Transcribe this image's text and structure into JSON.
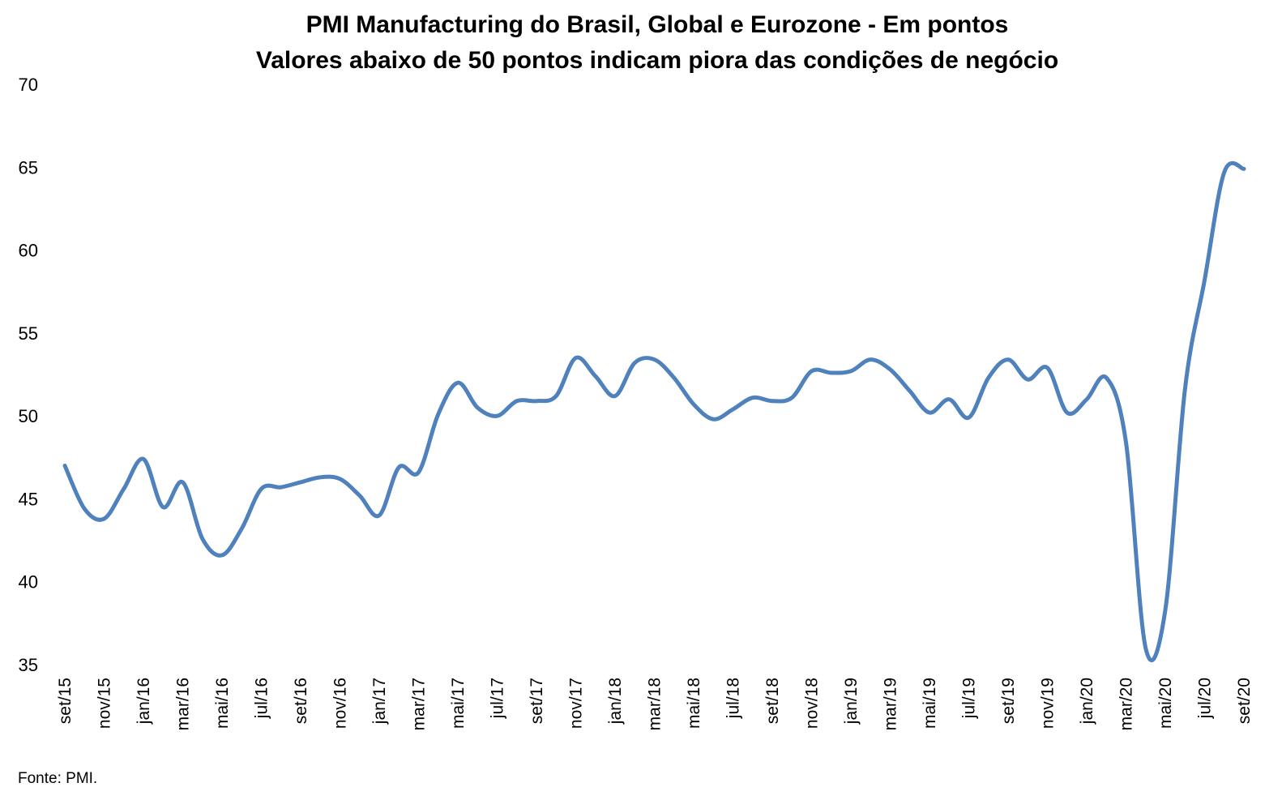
{
  "chart_data": {
    "type": "line",
    "title": "PMI Manufacturing do Brasil, Global e Eurozone - Em pontos",
    "subtitle": "Valores abaixo de 50 pontos indicam piora das condições de negócio",
    "xlabel": "",
    "ylabel": "",
    "ylim": [
      35,
      70
    ],
    "yticks": [
      35,
      40,
      45,
      50,
      55,
      60,
      65,
      70
    ],
    "grid": false,
    "legend": "none",
    "x_tick_labels": [
      "set/15",
      "nov/15",
      "jan/16",
      "mar/16",
      "mai/16",
      "jul/16",
      "set/16",
      "nov/16",
      "jan/17",
      "mar/17",
      "mai/17",
      "jul/17",
      "set/17",
      "nov/17",
      "jan/18",
      "mar/18",
      "mai/18",
      "jul/18",
      "set/18",
      "nov/18",
      "jan/19",
      "mar/19",
      "mai/19",
      "jul/19",
      "set/19",
      "nov/19",
      "jan/20",
      "mar/20",
      "mai/20",
      "jul/20",
      "set/20"
    ],
    "x": [
      "set/15",
      "out/15",
      "nov/15",
      "dez/15",
      "jan/16",
      "fev/16",
      "mar/16",
      "abr/16",
      "mai/16",
      "jun/16",
      "jul/16",
      "ago/16",
      "set/16",
      "out/16",
      "nov/16",
      "dez/16",
      "jan/17",
      "fev/17",
      "mar/17",
      "abr/17",
      "mai/17",
      "jun/17",
      "jul/17",
      "ago/17",
      "set/17",
      "out/17",
      "nov/17",
      "dez/17",
      "jan/18",
      "fev/18",
      "mar/18",
      "abr/18",
      "mai/18",
      "jun/18",
      "jul/18",
      "ago/18",
      "set/18",
      "out/18",
      "nov/18",
      "dez/18",
      "jan/19",
      "fev/19",
      "mar/19",
      "abr/19",
      "mai/19",
      "jun/19",
      "jul/19",
      "ago/19",
      "set/19",
      "out/19",
      "nov/19",
      "dez/19",
      "jan/20",
      "fev/20",
      "mar/20",
      "abr/20",
      "mai/20",
      "jun/20",
      "jul/20",
      "ago/20",
      "set/20"
    ],
    "series": [
      {
        "values": [
          47.0,
          44.4,
          43.8,
          45.6,
          47.4,
          44.5,
          46.0,
          42.6,
          41.6,
          43.2,
          45.6,
          45.7,
          46.0,
          46.3,
          46.2,
          45.2,
          44.0,
          46.9,
          46.6,
          50.1,
          52.0,
          50.5,
          50.0,
          50.9,
          50.9,
          51.2,
          53.5,
          52.4,
          51.2,
          53.2,
          53.4,
          52.3,
          50.7,
          49.8,
          50.4,
          51.1,
          50.9,
          51.1,
          52.7,
          52.6,
          52.7,
          53.4,
          52.8,
          51.5,
          50.2,
          51.0,
          49.9,
          52.3,
          53.4,
          52.2,
          52.9,
          50.2,
          51.0,
          52.3,
          48.4,
          36.0,
          38.3,
          51.6,
          58.2,
          64.7,
          64.9
        ]
      }
    ],
    "line_color": "#4f81bd"
  },
  "footer": {
    "source": "Fonte: PMI."
  }
}
